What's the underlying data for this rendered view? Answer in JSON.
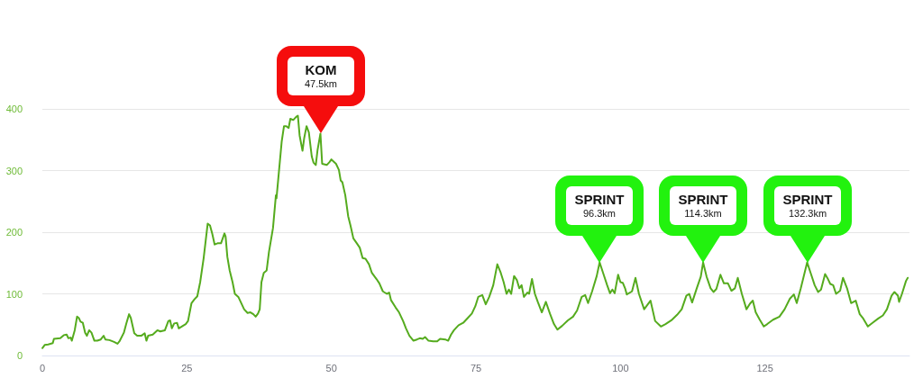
{
  "chart_data": {
    "type": "line",
    "color": "#55ab1e",
    "grid": "y",
    "xlim": [
      0,
      150
    ],
    "xticks": [
      0,
      25,
      50,
      75,
      100,
      125
    ],
    "ylim": [
      0,
      400
    ],
    "yticks": [
      0,
      100,
      200,
      300,
      400
    ],
    "x": [
      0,
      0.4,
      1.0,
      1.8,
      2.0,
      3.1,
      3.7,
      4.2,
      4.5,
      4.9,
      5.1,
      5.6,
      6.0,
      6.3,
      6.6,
      7.0,
      7.4,
      7.7,
      8.1,
      8.5,
      9.0,
      9.5,
      10.1,
      10.6,
      10.9,
      11.6,
      12.4,
      13.0,
      13.4,
      14.1,
      14.5,
      15.0,
      15.3,
      15.9,
      16.4,
      17.1,
      17.7,
      18.0,
      18.3,
      19.1,
      19.9,
      20.4,
      21.2,
      21.8,
      22.1,
      22.4,
      22.8,
      23.3,
      23.6,
      24.1,
      24.8,
      25.2,
      25.8,
      26.3,
      26.8,
      27.3,
      27.9,
      28.6,
      29.0,
      29.4,
      29.8,
      30.3,
      30.9,
      31.5,
      31.7,
      32.0,
      32.4,
      32.9,
      33.3,
      33.9,
      34.3,
      34.9,
      35.5,
      36.0,
      36.5,
      36.9,
      37.3,
      37.6,
      37.9,
      38.3,
      38.8,
      39.2,
      39.9,
      40.4,
      40.5,
      41.4,
      41.8,
      42.2,
      42.6,
      42.9,
      43.4,
      43.9,
      44.2,
      44.5,
      45.0,
      45.3,
      45.7,
      46.1,
      46.6,
      46.9,
      47.3,
      47.6,
      48.1,
      48.4,
      49.2,
      49.7,
      50.0,
      50.8,
      51.3,
      51.6,
      51.9,
      52.4,
      52.9,
      53.3,
      53.8,
      54.4,
      54.9,
      55.4,
      55.9,
      56.5,
      57.0,
      57.8,
      58.3,
      58.9,
      59.6,
      60.0,
      60.3,
      61.1,
      61.7,
      62.4,
      62.9,
      63.5,
      64.2,
      64.8,
      65.3,
      65.8,
      66.2,
      66.8,
      67.6,
      68.3,
      68.8,
      69.7,
      70.2,
      70.7,
      71.2,
      72.0,
      72.8,
      73.6,
      74.3,
      74.9,
      75.4,
      76.1,
      76.7,
      77.3,
      78.0,
      78.7,
      79.3,
      79.8,
      80.3,
      80.7,
      81.1,
      81.6,
      82.1,
      82.5,
      82.9,
      83.3,
      83.9,
      84.2,
      84.7,
      85.2,
      85.7,
      86.4,
      87.1,
      87.8,
      88.5,
      89.1,
      89.9,
      90.9,
      91.8,
      92.5,
      93.3,
      93.9,
      94.4,
      95.1,
      95.9,
      96.4,
      97.0,
      97.7,
      98.2,
      98.6,
      99.0,
      99.6,
      100.0,
      100.4,
      100.8,
      101.1,
      102.0,
      102.6,
      103.2,
      104.1,
      105.2,
      106.0,
      107.0,
      107.8,
      108.8,
      109.8,
      110.6,
      111.4,
      111.9,
      112.4,
      113.2,
      113.9,
      114.3,
      114.9,
      115.6,
      116.1,
      116.6,
      117.3,
      117.9,
      118.6,
      119.2,
      119.8,
      120.3,
      121.0,
      121.8,
      122.4,
      122.9,
      123.4,
      124.1,
      124.8,
      125.4,
      126.4,
      127.5,
      128.4,
      129.3,
      130.0,
      130.5,
      131.2,
      131.7,
      132.3,
      132.9,
      133.6,
      134.2,
      134.7,
      135.4,
      135.9,
      136.3,
      136.8,
      137.3,
      138.0,
      138.5,
      139.2,
      139.9,
      140.7,
      141.4,
      142.0,
      142.8,
      143.6,
      144.6,
      145.4,
      146.1,
      146.9,
      147.4,
      148.0,
      148.2,
      148.7,
      149.4,
      149.7
    ],
    "values": [
      12,
      17,
      18,
      20,
      27,
      28,
      33,
      34,
      28,
      29,
      24,
      41,
      63,
      61,
      55,
      53,
      37,
      32,
      41,
      37,
      24,
      24,
      26,
      32,
      26,
      25,
      22,
      19,
      24,
      37,
      51,
      67,
      61,
      36,
      32,
      32,
      36,
      24,
      32,
      34,
      41,
      39,
      41,
      56,
      57,
      44,
      52,
      53,
      44,
      47,
      51,
      56,
      85,
      91,
      96,
      119,
      158,
      214,
      211,
      197,
      180,
      182,
      182,
      198,
      193,
      160,
      138,
      119,
      100,
      95,
      87,
      75,
      69,
      70,
      67,
      63,
      68,
      75,
      119,
      134,
      138,
      168,
      207,
      260,
      255,
      347,
      372,
      372,
      369,
      384,
      382,
      387,
      389,
      357,
      332,
      353,
      372,
      362,
      323,
      313,
      309,
      333,
      360,
      311,
      309,
      314,
      318,
      311,
      301,
      284,
      281,
      260,
      226,
      211,
      190,
      182,
      175,
      158,
      157,
      148,
      134,
      124,
      117,
      104,
      100,
      102,
      90,
      78,
      70,
      56,
      44,
      32,
      24,
      26,
      28,
      27,
      30,
      24,
      23,
      23,
      27,
      26,
      24,
      34,
      41,
      49,
      53,
      61,
      68,
      80,
      95,
      98,
      83,
      95,
      114,
      148,
      134,
      119,
      100,
      107,
      100,
      129,
      122,
      109,
      114,
      95,
      102,
      100,
      124,
      100,
      87,
      70,
      87,
      68,
      51,
      42,
      48,
      57,
      63,
      73,
      95,
      98,
      85,
      104,
      129,
      151,
      134,
      114,
      101,
      107,
      101,
      131,
      119,
      118,
      109,
      99,
      104,
      126,
      100,
      75,
      89,
      56,
      47,
      51,
      57,
      66,
      75,
      97,
      100,
      86,
      109,
      128,
      151,
      128,
      109,
      103,
      108,
      131,
      117,
      117,
      105,
      109,
      126,
      100,
      75,
      84,
      89,
      70,
      58,
      47,
      51,
      58,
      63,
      75,
      92,
      99,
      85,
      109,
      128,
      151,
      134,
      114,
      103,
      107,
      132,
      124,
      116,
      114,
      100,
      105,
      126,
      109,
      85,
      89,
      67,
      60,
      47,
      53,
      60,
      65,
      75,
      97,
      103,
      97,
      87,
      100,
      121,
      126
    ],
    "annotations": [
      "KOM\n47.5km",
      "SPRINT\n96.3km",
      "SPRINT\n114.3km",
      "SPRINT\n132.3km"
    ]
  }
}
